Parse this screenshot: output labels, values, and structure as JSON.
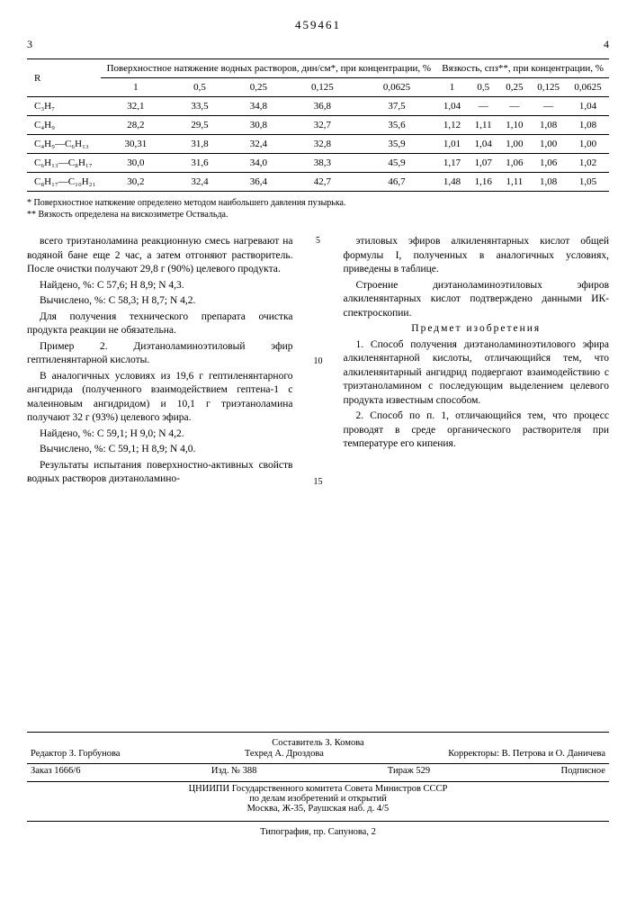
{
  "patent_number": "459461",
  "page_left": "3",
  "page_right": "4",
  "table": {
    "r_header": "R",
    "group1_header": "Поверхностное натяжение водных растворов, дин/см*, при концентрации, %",
    "group2_header": "Вязкость, спз**, при концентрации, %",
    "conc": [
      "1",
      "0,5",
      "0,25",
      "0,125",
      "0,0625",
      "1",
      "0,5",
      "0,25",
      "0,125",
      "0,0625"
    ],
    "rows": [
      {
        "r": "C₃H₇",
        "v": [
          "32,1",
          "33,5",
          "34,8",
          "36,8",
          "37,5",
          "1,04",
          "—",
          "—",
          "—",
          "1,04"
        ]
      },
      {
        "r": "C₄H₉",
        "v": [
          "28,2",
          "29,5",
          "30,8",
          "32,7",
          "35,6",
          "1,12",
          "1,11",
          "1,10",
          "1,08",
          "1,08"
        ]
      },
      {
        "r": "C₄H₉—C₆H₁₃",
        "v": [
          "30,31",
          "31,8",
          "32,4",
          "32,8",
          "35,9",
          "1,01",
          "1,04",
          "1,00",
          "1,00",
          "1,00"
        ]
      },
      {
        "r": "C₆H₁₃—C₈H₁₇",
        "v": [
          "30,0",
          "31,6",
          "34,0",
          "38,3",
          "45,9",
          "1,17",
          "1,07",
          "1,06",
          "1,06",
          "1,02"
        ]
      },
      {
        "r": "C₈H₁₇—C₁₀H₂₁",
        "v": [
          "30,2",
          "32,4",
          "36,4",
          "42,7",
          "46,7",
          "1,48",
          "1,16",
          "1,11",
          "1,08",
          "1,05"
        ]
      }
    ]
  },
  "footnote1": "* Поверхностное натяжение определено методом наибольшего давления пузырька.",
  "footnote2": "** Вязкость определена на вискозиметре Оствальда.",
  "left_col": {
    "p1": "всего триэтаноламина реакционную смесь нагревают на водяной бане еще 2 час, а затем отгоняют растворитель. После очистки получают 29,8 г (90%) целевого продукта.",
    "p2": "Найдено, %: C 57,6; H 8,9; N 4,3.",
    "p3": "Вычислено, %: C 58,3; H 8,7; N 4,2.",
    "p4": "Для получения технического препарата очистка продукта реакции не обязательна.",
    "p5": "Пример 2. Диэтаноламиноэтиловый эфир гептиленянтарной кислоты.",
    "p6": "В аналогичных условиях из 19,6 г гептиленянтарного ангидрида (полученного взаимодействием гептена-1 с малеиновым ангидридом) и 10,1 г триэтаноламина получают 32 г (93%) целевого эфира.",
    "p7": "Найдено, %: C 59,1; H 9,0; N 4,2.",
    "p8": "Вычислено, %: C 59,1; H 8,9; N 4,0.",
    "p9": "Результаты испытания поверхностно-активных свойств водных растворов диэтаноламино-"
  },
  "right_col": {
    "p1": "этиловых эфиров алкиленянтарных кислот общей формулы I, полученных в аналогичных условиях, приведены в таблице.",
    "p2": "Строение диэтаноламиноэтиловых эфиров алкиленянтарных кислот подтверждено данными ИК-спектроскопии.",
    "subject": "Предмет изобретения",
    "p3": "1. Способ получения диэтаноламиноэтилового эфира алкиленянтарной кислоты, отличающийся тем, что алкиленянтарный ангидрид подвергают взаимодействию с триэтаноламином с последующим выделением целевого продукта известным способом.",
    "p4": "2. Способ по п. 1, отличающийся тем, что процесс проводят в среде органического растворителя при температуре его кипения."
  },
  "line_markers": [
    "5",
    "10",
    "15"
  ],
  "ed": {
    "compiler": "Составитель З. Комова",
    "editor": "Редактор З. Горбунова",
    "techred": "Техред А. Дроздова",
    "corrector": "Корректоры: В. Петрова и О. Даничева",
    "order": "Заказ 1666/6",
    "izd": "Изд. № 388",
    "tirazh": "Тираж 529",
    "sub": "Подписное",
    "org1": "ЦНИИПИ Государственного комитета Совета Министров СССР",
    "org2": "по делам изобретений и открытий",
    "addr": "Москва, Ж-35, Раушская наб. д. 4/5",
    "typo": "Типография, пр. Сапунова, 2"
  }
}
